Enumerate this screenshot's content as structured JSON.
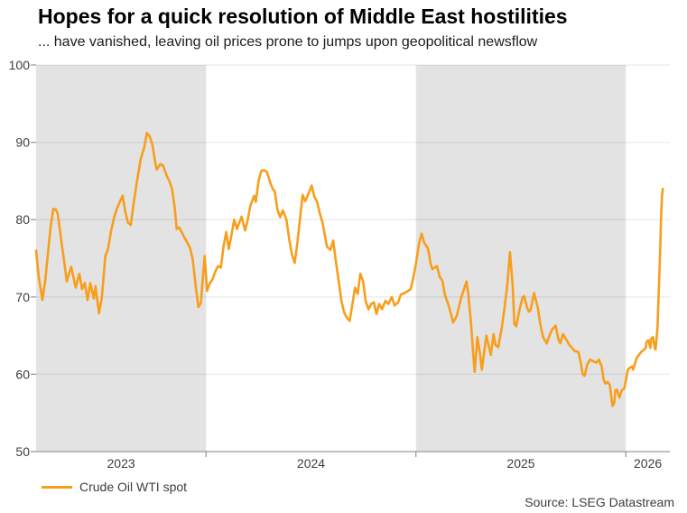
{
  "header": {
    "title": "Hopes for a quick resolution of Middle East hostilities",
    "subtitle": "... have vanished, leaving oil prices prone to jumps upon geopolitical newsflow"
  },
  "legend": {
    "label": "Crude Oil WTI spot"
  },
  "footer": {
    "source": "Source: LSEG Datastream"
  },
  "colors": {
    "line": "#F89E1B",
    "band": "#E3E3E3",
    "grid": "rgba(0,0,0,0.08)",
    "axis": "#9B9B9B",
    "tick_text": "#3D3D3D"
  },
  "chart_data": {
    "type": "line",
    "title": "Hopes for a quick resolution of Middle East hostilities",
    "subtitle": "... have vanished, leaving oil prices prone to jumps upon geopolitical newsflow",
    "xlabel": "",
    "ylabel": "",
    "xlim": [
      2023.19,
      2026.21
    ],
    "ylim": [
      50,
      100
    ],
    "y_ticks": [
      50,
      60,
      70,
      80,
      90,
      100
    ],
    "x_ticks": [
      {
        "label": "2023",
        "pos": 2023.595
      },
      {
        "label": "2024",
        "pos": 2024.5
      },
      {
        "label": "2025",
        "pos": 2025.5
      },
      {
        "label": "2026",
        "pos": 2026.105
      }
    ],
    "x_boundary_ticks": [
      2024,
      2025,
      2026
    ],
    "shaded_bands": [
      [
        2023.19,
        2024.0
      ],
      [
        2025.0,
        2026.0
      ]
    ],
    "grid": "horizontal",
    "legend_position": "bottom-left",
    "series": [
      {
        "name": "Crude Oil WTI spot",
        "x": [
          2023.19,
          2023.203,
          2023.22,
          2023.233,
          2023.246,
          2023.259,
          2023.272,
          2023.284,
          2023.293,
          2023.302,
          2023.314,
          2023.327,
          2023.336,
          2023.357,
          2023.379,
          2023.396,
          2023.409,
          2023.422,
          2023.435,
          2023.448,
          2023.465,
          2023.473,
          2023.49,
          2023.503,
          2023.52,
          2023.533,
          2023.546,
          2023.563,
          2023.576,
          2023.589,
          2023.602,
          2023.615,
          2023.628,
          2023.641,
          2023.654,
          2023.671,
          2023.688,
          2023.705,
          2023.718,
          2023.731,
          2023.744,
          2023.757,
          2023.765,
          2023.782,
          2023.795,
          2023.812,
          2023.825,
          2023.838,
          2023.851,
          2023.86,
          2023.872,
          2023.885,
          2023.898,
          2023.911,
          2023.924,
          2023.937,
          2023.95,
          2023.963,
          2023.975,
          2023.993,
          2024.005,
          2024.018,
          2024.031,
          2024.044,
          2024.057,
          2024.07,
          2024.083,
          2024.096,
          2024.108,
          2024.121,
          2024.134,
          2024.147,
          2024.169,
          2024.186,
          2024.199,
          2024.211,
          2024.229,
          2024.237,
          2024.25,
          2024.263,
          2024.276,
          2024.289,
          2024.306,
          2024.319,
          2024.327,
          2024.34,
          2024.353,
          2024.366,
          2024.383,
          2024.396,
          2024.409,
          2024.422,
          2024.435,
          2024.447,
          2024.46,
          2024.473,
          2024.49,
          2024.503,
          2024.516,
          2024.529,
          2024.542,
          2024.555,
          2024.576,
          2024.593,
          2024.606,
          2024.619,
          2024.632,
          2024.645,
          2024.658,
          2024.671,
          2024.684,
          2024.697,
          2024.71,
          2024.723,
          2024.735,
          2024.748,
          2024.761,
          2024.774,
          2024.787,
          2024.8,
          2024.812,
          2024.825,
          2024.838,
          2024.855,
          2024.868,
          2024.885,
          2024.898,
          2024.915,
          2024.928,
          2024.945,
          2024.958,
          2024.975,
          2024.988,
          2025.001,
          2025.014,
          2025.027,
          2025.04,
          2025.057,
          2025.07,
          2025.078,
          2025.1,
          2025.113,
          2025.126,
          2025.139,
          2025.156,
          2025.173,
          2025.177,
          2025.194,
          2025.216,
          2025.229,
          2025.241,
          2025.25,
          2025.263,
          2025.272,
          2025.28,
          2025.293,
          2025.306,
          2025.314,
          2025.336,
          2025.344,
          2025.357,
          2025.37,
          2025.379,
          2025.392,
          2025.409,
          2025.422,
          2025.435,
          2025.448,
          2025.461,
          2025.469,
          2025.478,
          2025.495,
          2025.508,
          2025.516,
          2025.529,
          2025.538,
          2025.546,
          2025.563,
          2025.58,
          2025.593,
          2025.606,
          2025.623,
          2025.636,
          2025.649,
          2025.666,
          2025.679,
          2025.688,
          2025.701,
          2025.714,
          2025.731,
          2025.744,
          2025.757,
          2025.774,
          2025.787,
          2025.795,
          2025.804,
          2025.817,
          2025.83,
          2025.843,
          2025.86,
          2025.872,
          2025.885,
          2025.894,
          2025.902,
          2025.915,
          2025.924,
          2025.937,
          2025.945,
          2025.95,
          2025.958,
          2025.967,
          2025.971,
          2025.98,
          2025.993,
          2026.01,
          2026.022,
          2026.031,
          2026.035,
          2026.052,
          2026.057,
          2026.074,
          2026.095,
          2026.099,
          2026.108,
          2026.117,
          2026.121,
          2026.13,
          2026.138,
          2026.142,
          2026.151,
          2026.155,
          2026.159,
          2026.164,
          2026.168,
          2026.172,
          2026.177
        ],
        "y": [
          76.0,
          72.5,
          69.6,
          72.0,
          75.5,
          79.0,
          81.4,
          81.3,
          80.8,
          79.0,
          76.5,
          74.0,
          72.0,
          73.9,
          71.2,
          73.0,
          71.0,
          71.8,
          69.6,
          71.8,
          69.8,
          71.4,
          67.9,
          69.9,
          75.3,
          76.2,
          78.4,
          80.4,
          81.5,
          82.3,
          83.1,
          81.0,
          79.6,
          79.3,
          82.0,
          85.0,
          87.8,
          89.3,
          91.2,
          90.8,
          89.7,
          87.5,
          86.5,
          87.2,
          87.0,
          85.7,
          85.0,
          84.0,
          81.5,
          78.8,
          79.0,
          78.3,
          77.6,
          77.0,
          76.3,
          74.8,
          71.5,
          68.7,
          69.2,
          75.3,
          70.8,
          71.8,
          72.3,
          73.3,
          74.0,
          73.8,
          76.5,
          78.4,
          76.2,
          78.0,
          80.0,
          78.8,
          80.4,
          78.6,
          80.0,
          81.8,
          83.1,
          82.3,
          85.0,
          86.3,
          86.4,
          86.2,
          84.8,
          83.9,
          83.7,
          81.3,
          80.3,
          81.2,
          80.0,
          77.5,
          75.5,
          74.4,
          77.0,
          80.0,
          83.2,
          82.4,
          83.5,
          84.4,
          83.0,
          82.3,
          80.8,
          79.6,
          76.5,
          76.1,
          77.3,
          74.5,
          72.0,
          69.5,
          68.0,
          67.3,
          66.9,
          69.0,
          71.2,
          70.4,
          73.0,
          72.0,
          69.4,
          68.4,
          69.1,
          69.3,
          67.8,
          69.1,
          68.4,
          69.5,
          69.1,
          70.0,
          68.9,
          69.3,
          70.3,
          70.5,
          70.7,
          71.0,
          72.5,
          74.5,
          76.8,
          78.2,
          77.0,
          76.3,
          74.3,
          73.6,
          74.0,
          72.6,
          72.1,
          70.2,
          68.9,
          67.2,
          66.7,
          67.5,
          69.9,
          71.0,
          72.0,
          70.3,
          66.4,
          62.9,
          60.3,
          64.8,
          62.5,
          60.6,
          65.0,
          64.0,
          62.5,
          65.2,
          63.8,
          63.5,
          66.0,
          68.5,
          71.5,
          75.8,
          71.5,
          66.5,
          66.2,
          68.5,
          69.9,
          70.1,
          68.7,
          68.1,
          68.3,
          70.5,
          68.7,
          66.4,
          64.8,
          64.0,
          65.0,
          65.8,
          66.3,
          64.5,
          64.0,
          65.2,
          64.6,
          63.8,
          63.4,
          63.0,
          62.9,
          61.3,
          60.0,
          59.8,
          61.3,
          61.9,
          61.7,
          61.5,
          61.9,
          61.0,
          59.4,
          58.8,
          59.0,
          58.6,
          55.9,
          56.3,
          57.9,
          58.0,
          57.2,
          57.0,
          57.9,
          58.2,
          60.6,
          60.9,
          61.0,
          60.6,
          62.1,
          62.3,
          62.9,
          63.4,
          64.2,
          64.4,
          63.4,
          64.6,
          64.8,
          63.4,
          63.2,
          66.0,
          69.0,
          72.0,
          76.0,
          80.0,
          83.0,
          84.0
        ]
      }
    ]
  }
}
